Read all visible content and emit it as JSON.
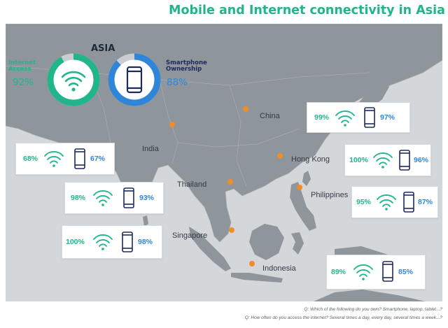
{
  "title": "Mobile and Internet connectivity in Asia",
  "asia": {
    "label": "ASIA",
    "internet_label_line1": "Internet",
    "internet_label_line2": "Access",
    "internet_pct": "92%",
    "internet_value": 92,
    "smartphone_label_line1": "Smartphone",
    "smartphone_label_line2": "Ownership",
    "smartphone_pct": "88%",
    "smartphone_value": 88
  },
  "chart_data": {
    "type": "table",
    "title": "Mobile and Internet connectivity in Asia",
    "columns": [
      "Internet access",
      "Smartphone ownership"
    ],
    "regional": {
      "name": "ASIA",
      "internet": 92,
      "smartphone": 88
    },
    "rows": [
      {
        "country": "China",
        "internet": 99,
        "smartphone": 97
      },
      {
        "country": "India",
        "internet": 68,
        "smartphone": 67
      },
      {
        "country": "Hong Kong",
        "internet": 100,
        "smartphone": 96
      },
      {
        "country": "Thailand",
        "internet": 98,
        "smartphone": 93
      },
      {
        "country": "Philippines",
        "internet": 95,
        "smartphone": 87
      },
      {
        "country": "Singapore",
        "internet": 100,
        "smartphone": 98
      },
      {
        "country": "Indonesia",
        "internet": 89,
        "smartphone": 85
      }
    ]
  },
  "cards": [
    {
      "country": "China",
      "internet_pct": "99%",
      "smartphone_pct": "97%"
    },
    {
      "country": "India",
      "internet_pct": "68%",
      "smartphone_pct": "67%"
    },
    {
      "country": "Hong Kong",
      "internet_pct": "100%",
      "smartphone_pct": "96%"
    },
    {
      "country": "Thailand",
      "internet_pct": "98%",
      "smartphone_pct": "93%"
    },
    {
      "country": "Philippines",
      "internet_pct": "95%",
      "smartphone_pct": "87%"
    },
    {
      "country": "Singapore",
      "internet_pct": "100%",
      "smartphone_pct": "98%"
    },
    {
      "country": "Indonesia",
      "internet_pct": "89%",
      "smartphone_pct": "85%"
    }
  ],
  "footnotes": {
    "q1": "Q: Which of the following do you own? Smartphone, laptop, tablet...?",
    "q2": "Q: How often do you access the internet? Several times a day, every day, several times a week...?"
  },
  "colors": {
    "internet": "#20b58a",
    "smartphone": "#2f86d8",
    "marker": "#f28c28",
    "ring_track": "#c9cdd1",
    "map_land": "#8e959b",
    "map_water": "#d3d7da"
  }
}
